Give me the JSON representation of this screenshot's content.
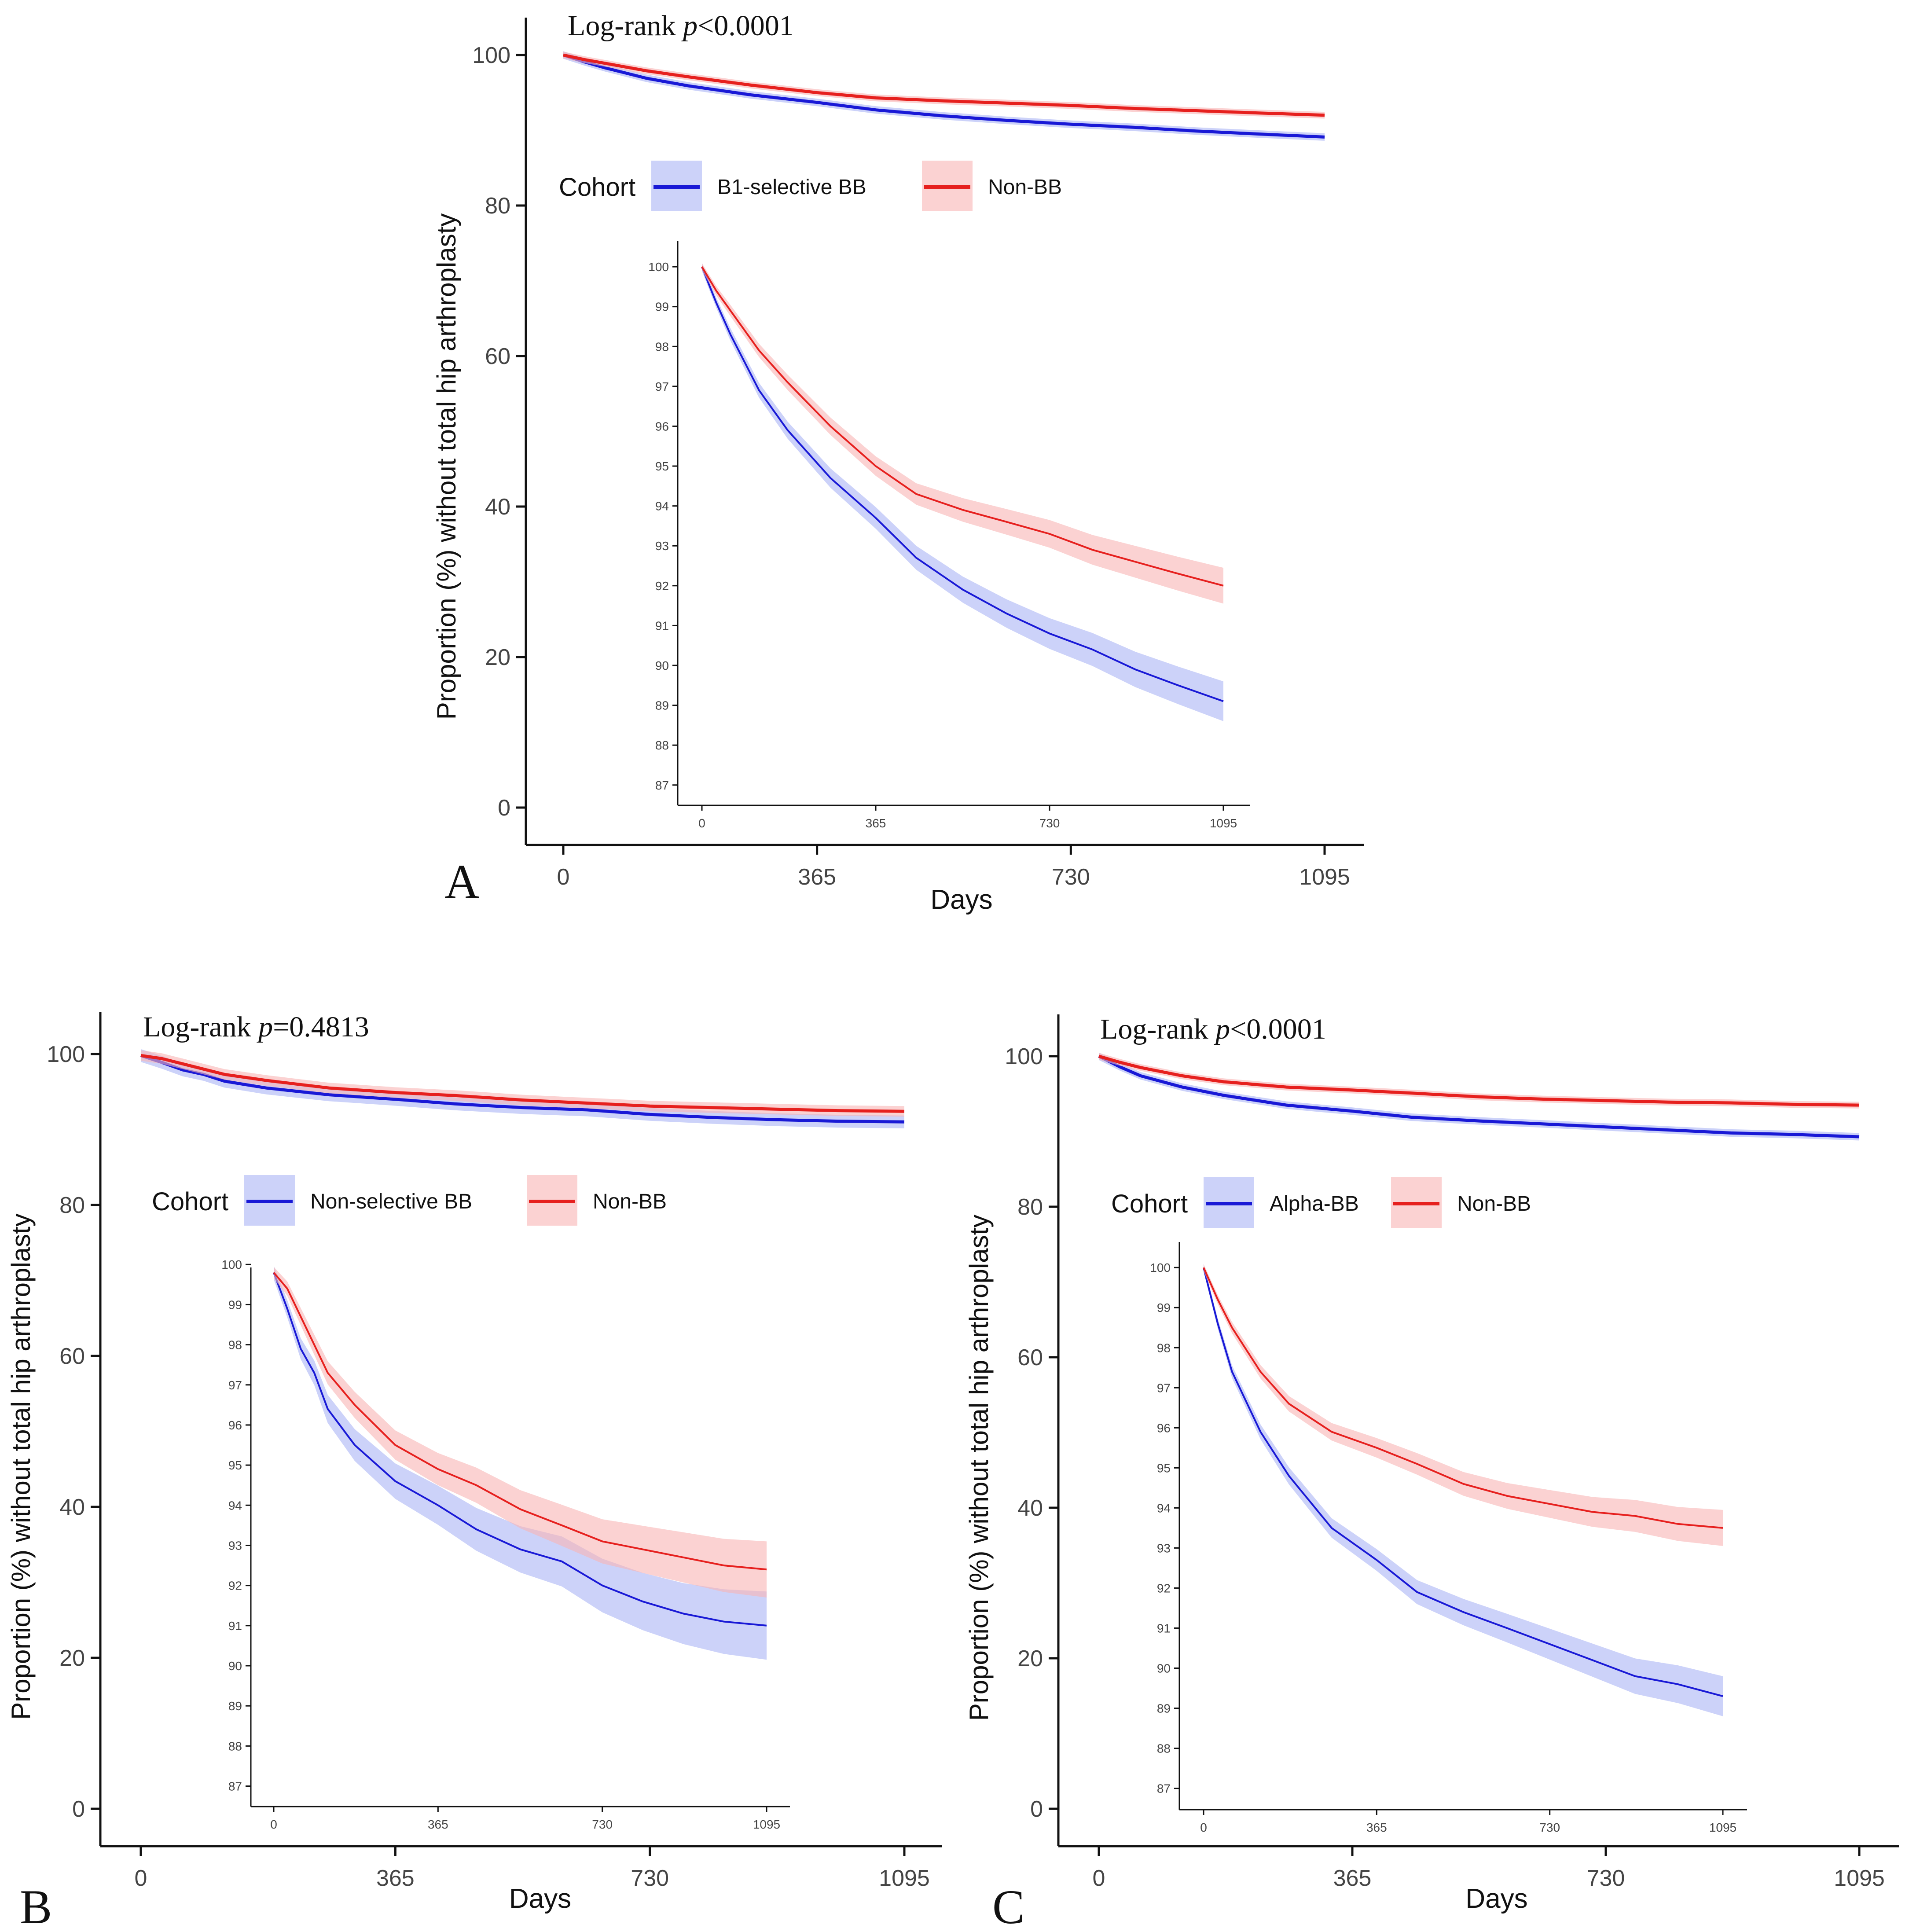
{
  "figure": {
    "colors": {
      "blue": "#1919d6",
      "blue_band": "#aab4f5",
      "red": "#e6201e",
      "red_band": "#f8b4b4",
      "axis": "#111111"
    }
  },
  "chart_data": [
    {
      "panel": "A",
      "type": "line",
      "title": "Log-rank p<0.0001",
      "title_prefix": "Log-rank ",
      "title_p": "p",
      "title_suffix": "<0.0001",
      "xlabel": "Days",
      "ylabel": "Proportion (%) without total hip arthroplasty",
      "xlim": [
        0,
        1095
      ],
      "ylim": [
        0,
        100
      ],
      "xticks": [
        "0",
        "365",
        "730",
        "1095"
      ],
      "yticks": [
        "0",
        "20",
        "40",
        "60",
        "80",
        "100"
      ],
      "legend": {
        "title": "Cohort",
        "entries": [
          "B1-selective BB",
          "Non-BB"
        ]
      },
      "x": [
        0,
        30,
        60,
        120,
        180,
        270,
        365,
        450,
        548,
        640,
        730,
        820,
        910,
        1000,
        1095
      ],
      "series": [
        {
          "name": "B1-selective BB",
          "color": "blue",
          "values": [
            100,
            99.1,
            98.3,
            96.9,
            95.9,
            94.7,
            93.7,
            92.7,
            91.9,
            91.3,
            90.8,
            90.4,
            89.9,
            89.5,
            89.1
          ],
          "band": 0.5
        },
        {
          "name": "Non-BB",
          "color": "red",
          "values": [
            100,
            99.4,
            98.9,
            97.9,
            97.1,
            96.0,
            95.0,
            94.3,
            93.9,
            93.6,
            93.3,
            92.9,
            92.6,
            92.3,
            92.0
          ],
          "band": 0.45
        }
      ],
      "inset": {
        "xlim": [
          0,
          1095
        ],
        "ylim": [
          86.6,
          100.2
        ],
        "xticks": [
          "0",
          "365",
          "730",
          "1095"
        ],
        "yticks": [
          "87",
          "88",
          "89",
          "90",
          "91",
          "92",
          "93",
          "94",
          "95",
          "96",
          "97",
          "98",
          "99",
          "100"
        ]
      }
    },
    {
      "panel": "B",
      "type": "line",
      "title": "Log-rank p=0.4813",
      "title_prefix": "Log-rank ",
      "title_p": "p",
      "title_suffix": "=0.4813",
      "xlabel": "Days",
      "ylabel": "Proportion (%) without total hip arthroplasty",
      "xlim": [
        0,
        1095
      ],
      "ylim": [
        0,
        100
      ],
      "xticks": [
        "0",
        "365",
        "730",
        "1095"
      ],
      "yticks": [
        "0",
        "20",
        "40",
        "60",
        "80",
        "100"
      ],
      "legend": {
        "title": "Cohort",
        "entries": [
          "Non-selective BB",
          "Non-BB"
        ]
      },
      "x": [
        0,
        30,
        60,
        90,
        120,
        180,
        270,
        365,
        450,
        548,
        640,
        730,
        820,
        910,
        1000,
        1095
      ],
      "series": [
        {
          "name": "Non-selective BB",
          "color": "blue",
          "values": [
            99.8,
            98.9,
            97.9,
            97.3,
            96.4,
            95.5,
            94.6,
            94.0,
            93.4,
            92.9,
            92.6,
            92.0,
            91.6,
            91.3,
            91.1,
            91.0
          ],
          "band": 0.85
        },
        {
          "name": "Non-BB",
          "color": "red",
          "values": [
            99.8,
            99.4,
            98.7,
            98.0,
            97.3,
            96.5,
            95.5,
            94.9,
            94.5,
            93.9,
            93.5,
            93.1,
            92.9,
            92.7,
            92.5,
            92.4
          ],
          "band": 0.7
        }
      ],
      "inset": {
        "xlim": [
          0,
          1095
        ],
        "ylim": [
          86.6,
          100.2
        ],
        "xticks": [
          "0",
          "365",
          "730",
          "1095"
        ],
        "yticks": [
          "87",
          "88",
          "89",
          "90",
          "91",
          "92",
          "93",
          "94",
          "95",
          "96",
          "97",
          "98",
          "99",
          "100"
        ]
      }
    },
    {
      "panel": "C",
      "type": "line",
      "title": "Log-rank p<0.0001",
      "title_prefix": "Log-rank ",
      "title_p": "p",
      "title_suffix": "<0.0001",
      "xlabel": "Days",
      "ylabel": "Proportion (%) without total hip arthroplasty",
      "xlim": [
        0,
        1095
      ],
      "ylim": [
        0,
        100
      ],
      "xticks": [
        "0",
        "365",
        "730",
        "1095"
      ],
      "yticks": [
        "0",
        "20",
        "40",
        "60",
        "80",
        "100"
      ],
      "legend": {
        "title": "Cohort",
        "entries": [
          "Alpha-BB",
          "Non-BB"
        ]
      },
      "x": [
        0,
        30,
        60,
        120,
        180,
        270,
        365,
        450,
        548,
        640,
        730,
        820,
        910,
        1000,
        1095
      ],
      "series": [
        {
          "name": "Alpha-BB",
          "color": "blue",
          "values": [
            100,
            98.6,
            97.4,
            95.9,
            94.8,
            93.5,
            92.7,
            91.9,
            91.4,
            91.0,
            90.6,
            90.2,
            89.8,
            89.6,
            89.3
          ],
          "band": 0.5
        },
        {
          "name": "Non-BB",
          "color": "red",
          "values": [
            100,
            99.2,
            98.5,
            97.4,
            96.6,
            95.9,
            95.5,
            95.1,
            94.6,
            94.3,
            94.1,
            93.9,
            93.8,
            93.6,
            93.5
          ],
          "band": 0.45
        }
      ],
      "inset": {
        "xlim": [
          0,
          1095
        ],
        "ylim": [
          86.6,
          100.2
        ],
        "xticks": [
          "0",
          "365",
          "730",
          "1095"
        ],
        "yticks": [
          "87",
          "88",
          "89",
          "90",
          "91",
          "92",
          "93",
          "94",
          "95",
          "96",
          "97",
          "98",
          "99",
          "100"
        ]
      }
    }
  ]
}
